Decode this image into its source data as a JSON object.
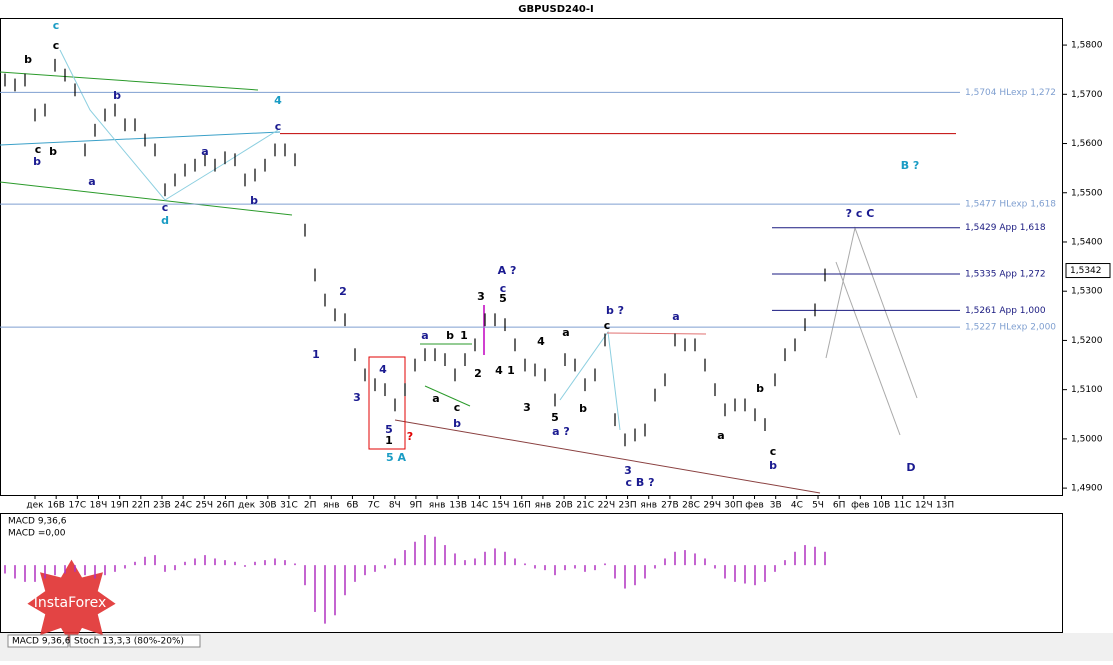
{
  "chart_data": {
    "type": "ohlc",
    "title": "GBPUSD240-I",
    "ylim": [
      1.4886,
      1.5855
    ],
    "yticks": [
      {
        "value": 1.58,
        "label": "1,5800"
      },
      {
        "value": 1.57,
        "label": "1,5700"
      },
      {
        "value": 1.56,
        "label": "1,5600"
      },
      {
        "value": 1.55,
        "label": "1,5500"
      },
      {
        "value": 1.54,
        "label": "1,5400"
      },
      {
        "value": 1.53,
        "label": "1,5300"
      },
      {
        "value": 1.52,
        "label": "1,5200"
      },
      {
        "value": 1.51,
        "label": "1,5100"
      },
      {
        "value": 1.5,
        "label": "1,5000"
      },
      {
        "value": 1.49,
        "label": "1,4900"
      }
    ],
    "x_axis_labels": [
      "дек",
      "16В",
      "17С",
      "18Ч",
      "19П",
      "22П",
      "23В",
      "24С",
      "25Ч",
      "26П",
      "дек",
      "30В",
      "31С",
      "2П",
      "янв",
      "6В",
      "7С",
      "8Ч",
      "9П",
      "янв",
      "13В",
      "14С",
      "15Ч",
      "16П",
      "янв",
      "20В",
      "21С",
      "22Ч",
      "23П",
      "янв",
      "27В",
      "28С",
      "29Ч",
      "30П",
      "фев",
      "3В",
      "4С",
      "5Ч",
      "6П",
      "фев",
      "10В",
      "11С",
      "12Ч",
      "13П"
    ],
    "color": "#000000",
    "high": [
      1.5742,
      1.5732,
      1.5742,
      1.5671,
      1.5681,
      1.5772,
      1.5752,
      1.5722,
      1.56,
      1.564,
      1.5671,
      1.5681,
      1.5651,
      1.5651,
      1.562,
      1.56,
      1.5519,
      1.5539,
      1.5559,
      1.5569,
      1.558,
      1.5569,
      1.5584,
      1.558,
      1.5539,
      1.5549,
      1.5569,
      1.56,
      1.56,
      1.558,
      1.5437,
      1.5346,
      1.5295,
      1.5265,
      1.5255,
      1.5184,
      1.5143,
      1.5123,
      1.5113,
      1.5082,
      1.5113,
      1.5163,
      1.5184,
      1.5184,
      1.5174,
      1.5143,
      1.5174,
      1.5204,
      1.5255,
      1.5255,
      1.5245,
      1.5204,
      1.5163,
      1.5153,
      1.5143,
      1.5092,
      1.5174,
      1.5163,
      1.5123,
      1.5143,
      1.5214,
      1.5052,
      1.5011,
      1.5021,
      1.5031,
      1.5102,
      1.5133,
      1.5214,
      1.5204,
      1.5204,
      1.5163,
      1.5113,
      1.5072,
      1.5082,
      1.5082,
      1.5062,
      1.5042,
      1.5133,
      1.5184,
      1.5204,
      1.5245,
      1.5275,
      1.5346
    ],
    "low": [
      1.5716,
      1.5706,
      1.5716,
      1.5645,
      1.5655,
      1.5746,
      1.5726,
      1.5696,
      1.5574,
      1.5614,
      1.5645,
      1.5655,
      1.5625,
      1.5625,
      1.5594,
      1.5574,
      1.5493,
      1.5513,
      1.5533,
      1.5543,
      1.5554,
      1.5543,
      1.5558,
      1.5554,
      1.5513,
      1.5523,
      1.5543,
      1.5574,
      1.5574,
      1.5554,
      1.5411,
      1.532,
      1.5269,
      1.5239,
      1.5229,
      1.5158,
      1.5117,
      1.5097,
      1.5087,
      1.5056,
      1.5087,
      1.5137,
      1.5158,
      1.5158,
      1.5148,
      1.5117,
      1.5148,
      1.5178,
      1.5229,
      1.5229,
      1.5219,
      1.5178,
      1.5137,
      1.5127,
      1.5117,
      1.5066,
      1.5148,
      1.5137,
      1.5097,
      1.5117,
      1.5188,
      1.5026,
      1.4985,
      1.4995,
      1.5005,
      1.5076,
      1.5107,
      1.5188,
      1.5178,
      1.5178,
      1.5137,
      1.5087,
      1.5046,
      1.5056,
      1.5056,
      1.5036,
      1.5016,
      1.5107,
      1.5158,
      1.5178,
      1.5219,
      1.5249,
      1.532
    ],
    "current_price": {
      "value": 1.5342,
      "label": "1,5342"
    },
    "resistance_line": {
      "value": 1.562,
      "color": "#c00000"
    },
    "levels": [
      {
        "value": 1.5704,
        "label": "1,5704 HLexp 1,272",
        "color": "#7f9fd0"
      },
      {
        "value": 1.5477,
        "label": "1,5477 HLexp 1,618",
        "color": "#7f9fd0"
      },
      {
        "value": 1.5429,
        "label": "1,5429 App 1,618",
        "color": "#1a1a80"
      },
      {
        "value": 1.5335,
        "label": "1,5335 App 1,272",
        "color": "#1a1a80"
      },
      {
        "value": 1.5261,
        "label": "1,5261 App 1,000",
        "color": "#1a1a80"
      },
      {
        "value": 1.5227,
        "label": "1,5227 HLexp 2,000",
        "color": "#7f9fd0"
      }
    ],
    "annotations": [
      {
        "text": "c",
        "color": "#1a9cc4"
      },
      {
        "text": "c",
        "color": "#000000"
      },
      {
        "text": "b",
        "color": "#000000"
      },
      {
        "text": "b",
        "color": "#1a1a90"
      },
      {
        "text": "c",
        "color": "#000000"
      },
      {
        "text": "b",
        "color": "#000000"
      },
      {
        "text": "b",
        "color": "#1a1a90"
      },
      {
        "text": "a",
        "color": "#1a1a90"
      },
      {
        "text": "a",
        "color": "#1a1a90"
      },
      {
        "text": "4",
        "color": "#1a9cc4"
      },
      {
        "text": "c",
        "color": "#1a1a90"
      },
      {
        "text": "c",
        "color": "#1a1a90"
      },
      {
        "text": "d",
        "color": "#1a9cc4"
      },
      {
        "text": "b",
        "color": "#1a1a90"
      },
      {
        "text": "2",
        "color": "#1a1a90"
      },
      {
        "text": "1",
        "color": "#1a1a90"
      },
      {
        "text": "3",
        "color": "#1a1a90"
      },
      {
        "text": "4",
        "color": "#1a1a90"
      },
      {
        "text": "5",
        "color": "#1a1a90"
      },
      {
        "text": "1",
        "color": "#000000"
      },
      {
        "text": "?",
        "color": "#e00000"
      },
      {
        "text": "5 A",
        "color": "#1a9cc4"
      },
      {
        "text": "a",
        "color": "#1a1a90"
      },
      {
        "text": "b",
        "color": "#000000"
      },
      {
        "text": "1",
        "color": "#000000"
      },
      {
        "text": "a",
        "color": "#000000"
      },
      {
        "text": "c",
        "color": "#000000"
      },
      {
        "text": "b",
        "color": "#1a1a90"
      },
      {
        "text": "A ?",
        "color": "#1a1a90"
      },
      {
        "text": "3",
        "color": "#000000"
      },
      {
        "text": "c",
        "color": "#1a1a90"
      },
      {
        "text": "5",
        "color": "#000000"
      },
      {
        "text": "2",
        "color": "#000000"
      },
      {
        "text": "4",
        "color": "#000000"
      },
      {
        "text": "1",
        "color": "#000000"
      },
      {
        "text": "3",
        "color": "#000000"
      },
      {
        "text": "4",
        "color": "#000000"
      },
      {
        "text": "a",
        "color": "#000000"
      },
      {
        "text": "5",
        "color": "#000000"
      },
      {
        "text": "a ?",
        "color": "#1a1a90"
      },
      {
        "text": "b",
        "color": "#000000"
      },
      {
        "text": "b ?",
        "color": "#1a1a90"
      },
      {
        "text": "c",
        "color": "#000000"
      },
      {
        "text": "3",
        "color": "#1a1a90"
      },
      {
        "text": "c B ?",
        "color": "#1a1a90"
      },
      {
        "text": "a",
        "color": "#1a1a90"
      },
      {
        "text": "a",
        "color": "#000000"
      },
      {
        "text": "b",
        "color": "#000000"
      },
      {
        "text": "c",
        "color": "#000000"
      },
      {
        "text": "b",
        "color": "#1a1a90"
      },
      {
        "text": "B ?",
        "color": "#1a9cc4"
      },
      {
        "text": "? c C",
        "color": "#1a1a90"
      },
      {
        "text": "D",
        "color": "#1a1a90"
      }
    ],
    "macd": {
      "label": "MACD 9,36,6",
      "value_label": "MACD =0,00",
      "color": "#b030c0",
      "ylim": [
        -0.004,
        0.003
      ],
      "values": [
        -0.0005,
        -0.0008,
        -0.001,
        -0.001,
        -0.0008,
        -0.0006,
        -0.0005,
        -0.0004,
        -0.0006,
        -0.0008,
        -0.0006,
        -0.0004,
        -0.0002,
        0.0002,
        0.0005,
        0.0006,
        -0.0004,
        -0.0003,
        0.0002,
        0.0004,
        0.0006,
        0.0004,
        0.0003,
        0.0002,
        -0.0001,
        0.0002,
        0.0003,
        0.0004,
        0.0003,
        0.0001,
        -0.0012,
        -0.0028,
        -0.0035,
        -0.003,
        -0.0018,
        -0.001,
        -0.0006,
        -0.0004,
        -0.0002,
        0.0004,
        0.0009,
        0.0014,
        0.0018,
        0.0017,
        0.0012,
        0.0007,
        0.0003,
        0.0004,
        0.0008,
        0.001,
        0.0008,
        0.0004,
        0.0001,
        -0.0002,
        -0.0003,
        -0.0006,
        -0.0003,
        -0.0002,
        -0.0004,
        -0.0003,
        0.0001,
        -0.0008,
        -0.0014,
        -0.0012,
        -0.0008,
        -0.0002,
        0.0004,
        0.0008,
        0.0009,
        0.0007,
        0.0004,
        -0.0002,
        -0.0008,
        -0.001,
        -0.0011,
        -0.0012,
        -0.001,
        -0.0004,
        0.0003,
        0.0008,
        0.0012,
        0.0011,
        0.0008
      ]
    },
    "tabs": [
      "MACD 9,36,6",
      "Stoch 13,3,3 (80%-20%)"
    ],
    "logo": "InstaForex"
  }
}
